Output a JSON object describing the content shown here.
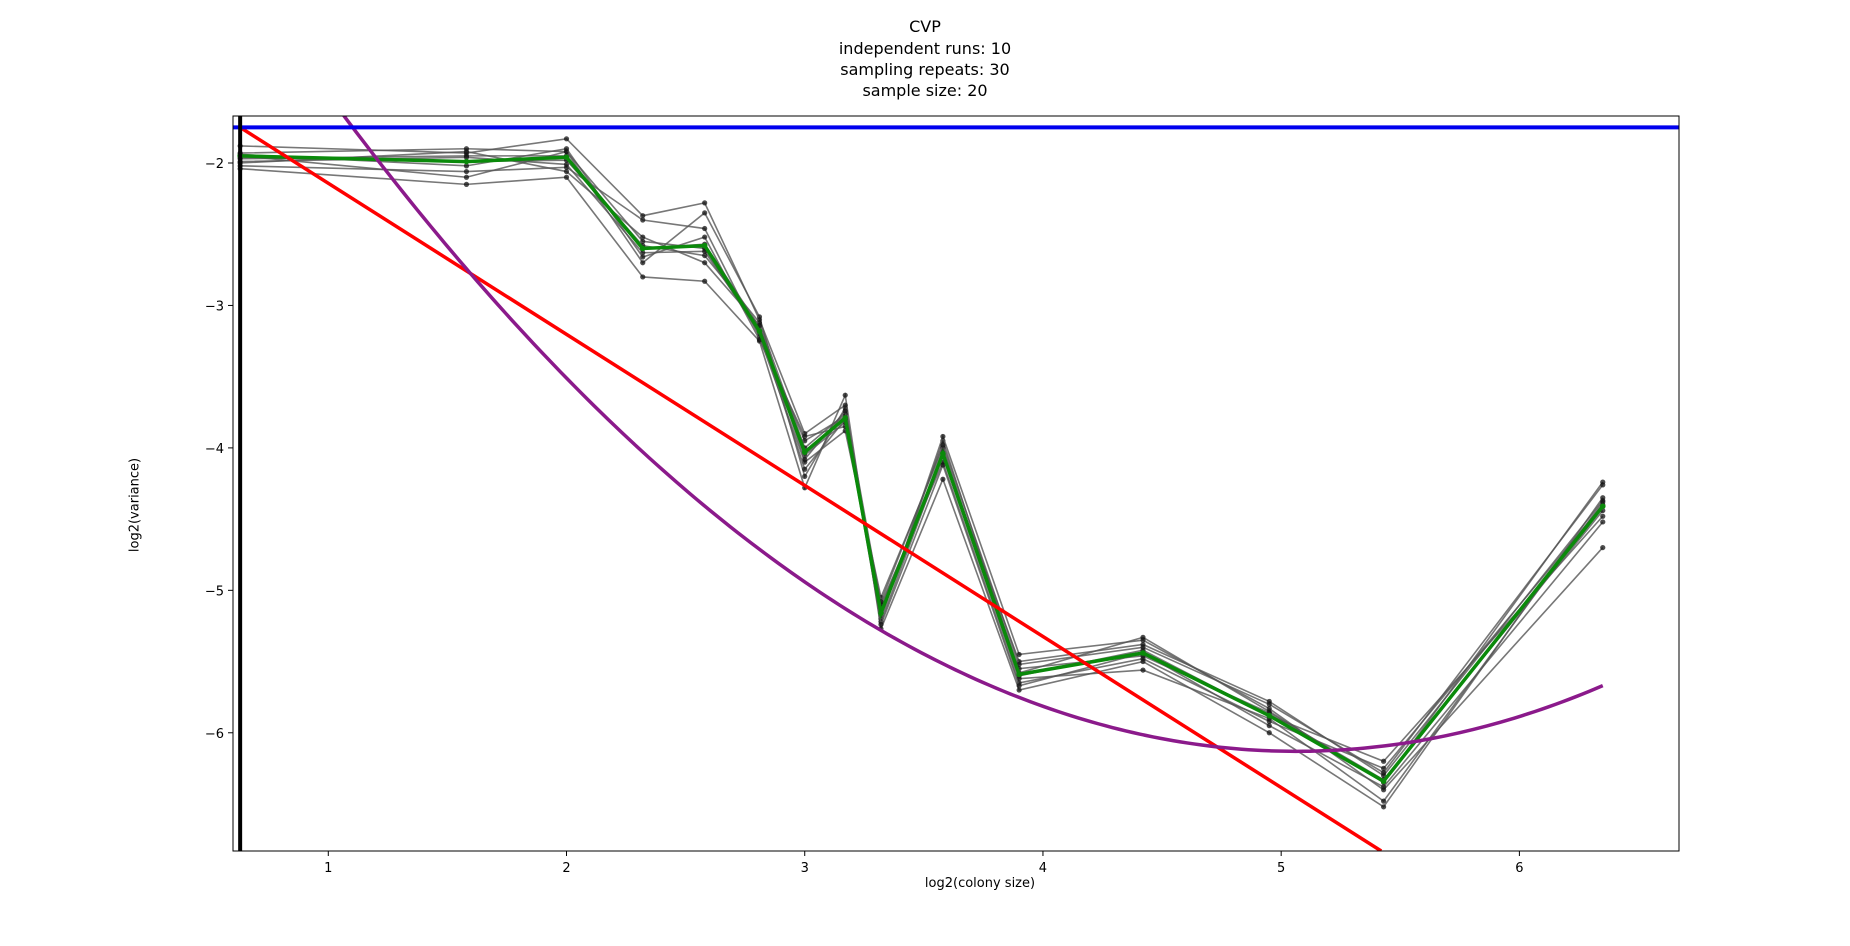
{
  "chart_data": {
    "type": "line",
    "title": [
      "CVP",
      "independent runs: 10",
      "sampling repeats: 30",
      "sample size: 20"
    ],
    "xlabel": "log2(colony size)",
    "ylabel": "log2(variance)",
    "xlim": [
      0.6,
      6.67
    ],
    "ylim": [
      -6.83,
      -1.67
    ],
    "xticks": [
      1,
      2,
      3,
      4,
      5,
      6
    ],
    "yticks": [
      -2,
      -3,
      -4,
      -5,
      -6
    ],
    "grid": false,
    "x": [
      0.63,
      1.58,
      2.0,
      2.32,
      2.58,
      2.81,
      3.0,
      3.17,
      3.32,
      3.58,
      3.9,
      4.42,
      4.95,
      5.43,
      6.35
    ],
    "runs": [
      {
        "values": [
          -1.93,
          -1.9,
          -1.92,
          -2.55,
          -2.6,
          -3.2,
          -3.95,
          -3.78,
          -5.12,
          -4.05,
          -5.5,
          -5.38,
          -5.78,
          -6.3,
          -4.37
        ]
      },
      {
        "values": [
          -1.97,
          -1.95,
          -1.95,
          -2.6,
          -2.57,
          -3.15,
          -4.05,
          -3.82,
          -5.18,
          -3.95,
          -5.58,
          -5.33,
          -5.85,
          -6.35,
          -4.24
        ]
      },
      {
        "values": [
          -2.02,
          -2.06,
          -2.03,
          -2.4,
          -2.46,
          -3.22,
          -4.1,
          -3.88,
          -5.05,
          -4.0,
          -5.6,
          -5.42,
          -5.88,
          -6.2,
          -4.48
        ]
      },
      {
        "values": [
          -1.95,
          -2.1,
          -1.92,
          -2.7,
          -2.35,
          -3.08,
          -4.2,
          -3.72,
          -5.1,
          -4.1,
          -5.65,
          -5.48,
          -5.92,
          -6.25,
          -4.4
        ]
      },
      {
        "values": [
          -2.04,
          -2.15,
          -2.1,
          -2.8,
          -2.83,
          -3.25,
          -4.28,
          -3.63,
          -5.27,
          -4.22,
          -5.7,
          -5.5,
          -6.0,
          -6.52,
          -4.35
        ]
      },
      {
        "values": [
          -1.88,
          -1.93,
          -1.83,
          -2.37,
          -2.28,
          -3.1,
          -3.9,
          -3.7,
          -5.2,
          -3.92,
          -5.45,
          -5.35,
          -5.83,
          -6.4,
          -4.7
        ]
      },
      {
        "values": [
          -1.99,
          -1.96,
          -2.01,
          -2.63,
          -2.62,
          -3.18,
          -4.15,
          -3.8,
          -5.22,
          -4.06,
          -5.62,
          -5.56,
          -5.9,
          -6.48,
          -4.38
        ]
      },
      {
        "values": [
          -1.96,
          -1.99,
          -1.98,
          -2.58,
          -2.65,
          -3.12,
          -4.0,
          -3.76,
          -5.15,
          -4.03,
          -5.55,
          -5.46,
          -5.86,
          -6.33,
          -4.44
        ]
      },
      {
        "values": [
          -1.94,
          -2.02,
          -1.9,
          -2.66,
          -2.52,
          -3.24,
          -3.92,
          -3.85,
          -5.08,
          -3.98,
          -5.52,
          -5.4,
          -5.8,
          -6.28,
          -4.26
        ]
      },
      {
        "values": [
          -2.0,
          -1.92,
          -2.06,
          -2.52,
          -2.7,
          -3.14,
          -4.08,
          -3.74,
          -5.24,
          -4.12,
          -5.67,
          -5.44,
          -5.95,
          -6.38,
          -4.52
        ]
      }
    ],
    "mean_values": [
      -1.95,
      -1.99,
      -1.96,
      -2.6,
      -2.58,
      -3.18,
      -4.03,
      -3.79,
      -5.16,
      -4.04,
      -5.59,
      -5.44,
      -5.88,
      -6.34,
      -4.41
    ],
    "fit_linear": {
      "x": [
        0.63,
        5.42
      ],
      "y": [
        -1.75,
        -6.83
      ]
    },
    "fit_quadratic": {
      "a": 0.279,
      "b": -2.826,
      "c": 1.026
    },
    "hline_y": -1.75,
    "vline_x": 0.63,
    "colors": {
      "runs": "#555555",
      "run_points": "#111111",
      "mean": "#0a8a0a",
      "linear": "#ff0000",
      "quadratic": "#8b1a8b",
      "hline": "#0000ee",
      "vline": "#000000"
    }
  }
}
